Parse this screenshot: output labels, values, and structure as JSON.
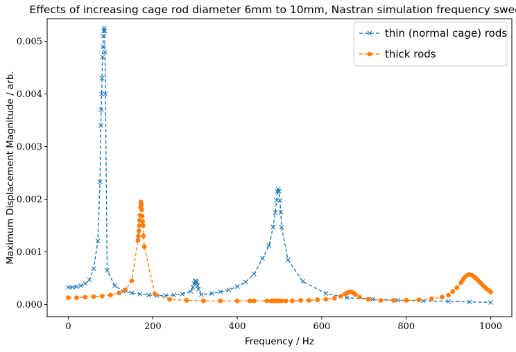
{
  "chart_data": {
    "type": "line",
    "title": "Effects of increasing cage rod diameter 6mm to 10mm, Nastran simulation frequency sweep",
    "xlabel": "Frequency / Hz",
    "ylabel": "Maximum Displacement Magnitude / arb.",
    "xlim": [
      -50,
      1050
    ],
    "ylim": [
      -0.00023,
      0.00543
    ],
    "xticks": [
      0,
      200,
      400,
      600,
      800,
      1000
    ],
    "xtick_labels": [
      "0",
      "200",
      "400",
      "600",
      "800",
      "1000"
    ],
    "yticks": [
      0,
      0.001,
      0.002,
      0.003,
      0.004,
      0.005
    ],
    "ytick_labels": [
      "0.000",
      "0.001",
      "0.002",
      "0.003",
      "0.004",
      "0.005"
    ],
    "grid": false,
    "legend_position": "top-right",
    "series": [
      {
        "name": "thin (normal cage) rods",
        "color": "#1f77b4",
        "marker": "x",
        "linestyle": "dashed",
        "x": [
          0,
          10,
          20,
          30,
          40,
          50,
          60,
          70,
          75,
          77,
          78,
          79,
          80,
          81,
          82,
          83,
          84,
          85,
          86,
          87,
          88,
          92,
          110,
          130,
          150,
          170,
          190,
          210,
          230,
          250,
          270,
          290,
          295,
          298,
          300,
          302,
          304,
          306,
          308,
          315,
          340,
          360,
          380,
          400,
          420,
          440,
          460,
          475,
          485,
          490,
          493,
          495,
          497,
          499,
          501,
          503,
          505,
          520,
          555,
          610,
          660,
          720,
          780,
          840,
          900,
          950,
          1000
        ],
        "y": [
          0.00033,
          0.00033,
          0.00034,
          0.00036,
          0.0004,
          0.00047,
          0.00068,
          0.00121,
          0.00233,
          0.0034,
          0.0037,
          0.004,
          0.0043,
          0.0047,
          0.0049,
          0.0051,
          0.0052,
          0.00525,
          0.0052,
          0.0048,
          0.004,
          0.00065,
          0.00036,
          0.00025,
          0.00022,
          0.0002,
          0.00018,
          0.00017,
          0.00017,
          0.00018,
          0.0002,
          0.00025,
          0.00033,
          0.0004,
          0.00044,
          0.00045,
          0.00043,
          0.00036,
          0.00029,
          0.00019,
          0.00021,
          0.00024,
          0.00028,
          0.00034,
          0.00043,
          0.00058,
          0.00088,
          0.00112,
          0.00147,
          0.00175,
          0.00198,
          0.00215,
          0.00219,
          0.00215,
          0.00198,
          0.00175,
          0.00147,
          0.00085,
          0.00044,
          0.00021,
          0.00013,
          0.0001,
          8e-05,
          7e-05,
          6e-05,
          5e-05,
          4e-05
        ]
      },
      {
        "name": "thick rods",
        "color": "#ff7f0e",
        "marker": "o",
        "linestyle": "dashed",
        "x": [
          0,
          20,
          40,
          60,
          80,
          100,
          120,
          135,
          150,
          165,
          166,
          167,
          168,
          169,
          170,
          171,
          172,
          173,
          174,
          175,
          176,
          177,
          178,
          180,
          205,
          240,
          280,
          320,
          360,
          400,
          430,
          440,
          470,
          480,
          485,
          490,
          495,
          500,
          505,
          515,
          530,
          550,
          570,
          590,
          610,
          630,
          645,
          655,
          660,
          665,
          670,
          675,
          680,
          690,
          710,
          740,
          770,
          800,
          830,
          860,
          885,
          900,
          910,
          920,
          930,
          935,
          940,
          945,
          950,
          955,
          960,
          965,
          970,
          975,
          980,
          985,
          990,
          995,
          1000
        ],
        "y": [
          0.00013,
          0.00013,
          0.00014,
          0.00015,
          0.00016,
          0.00018,
          0.00022,
          0.00028,
          0.00045,
          0.00122,
          0.0013,
          0.0014,
          0.0015,
          0.0016,
          0.0017,
          0.00185,
          0.00195,
          0.0019,
          0.0018,
          0.00168,
          0.00158,
          0.0015,
          0.0013,
          0.0011,
          0.0002,
          0.0001,
          8e-05,
          7e-05,
          7e-05,
          7e-05,
          7e-05,
          7e-05,
          7e-05,
          7e-05,
          7e-05,
          7e-05,
          7e-05,
          7e-05,
          7e-05,
          7e-05,
          7e-05,
          8e-05,
          8e-05,
          9e-05,
          0.0001,
          0.00012,
          0.00016,
          0.0002,
          0.00022,
          0.00024,
          0.00024,
          0.00022,
          0.00019,
          0.00014,
          0.0001,
          8e-05,
          8e-05,
          8e-05,
          9e-05,
          0.00011,
          0.00014,
          0.00018,
          0.00025,
          0.00032,
          0.00042,
          0.00048,
          0.00053,
          0.00056,
          0.00057,
          0.00056,
          0.00053,
          0.0005,
          0.00046,
          0.00042,
          0.00038,
          0.00034,
          0.0003,
          0.00027,
          0.00024
        ]
      }
    ]
  }
}
